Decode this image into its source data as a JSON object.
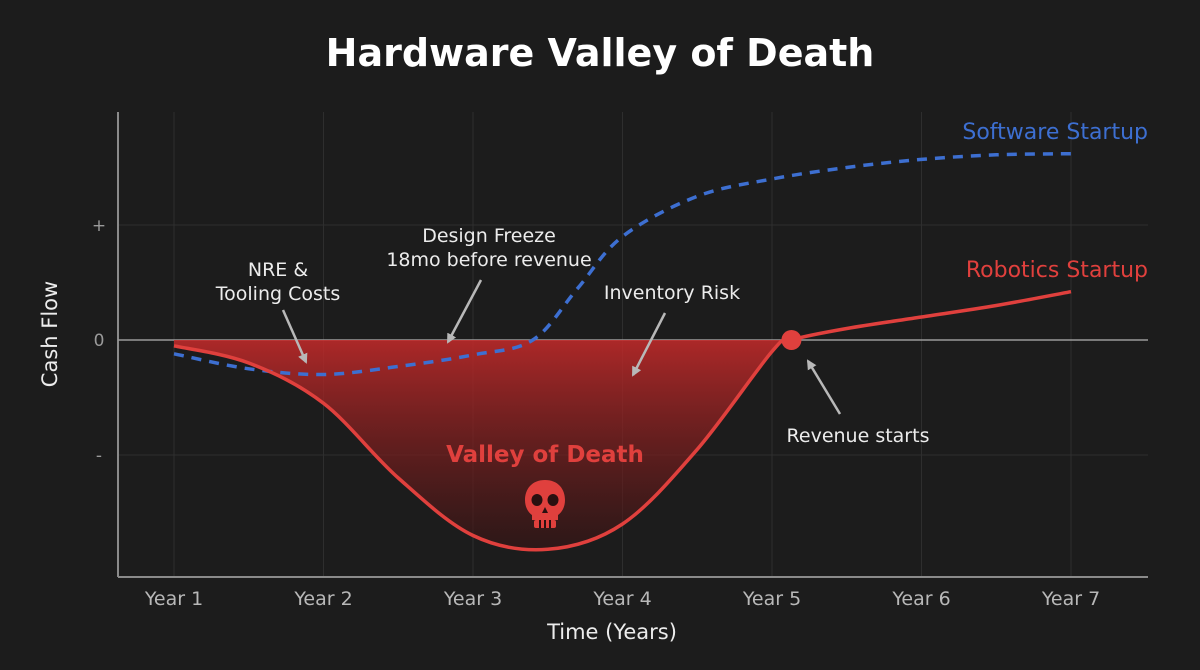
{
  "chart_data": {
    "type": "line",
    "title": "Hardware Valley of Death",
    "xlabel": "Time (Years)",
    "ylabel": "Cash Flow",
    "categories": [
      "Year 1",
      "Year 2",
      "Year 3",
      "Year 4",
      "Year 5",
      "Year 6",
      "Year 7"
    ],
    "xlim": [
      1,
      7
    ],
    "ylim": [
      -2,
      2
    ],
    "ytick_labels": [
      {
        "y": 1,
        "label": "+"
      },
      {
        "y": 0,
        "label": "0"
      },
      {
        "y": -1,
        "label": "-"
      }
    ],
    "grid": true,
    "series": [
      {
        "name": "Software Startup",
        "style": "dashed",
        "color": "#3d6fd1",
        "points": [
          [
            1,
            -0.12
          ],
          [
            1.5,
            -0.25
          ],
          [
            2,
            -0.3
          ],
          [
            2.5,
            -0.23
          ],
          [
            3,
            -0.13
          ],
          [
            3.4,
            0.0
          ],
          [
            3.7,
            0.45
          ],
          [
            4,
            0.9
          ],
          [
            4.5,
            1.25
          ],
          [
            5,
            1.4
          ],
          [
            5.5,
            1.5
          ],
          [
            6,
            1.57
          ],
          [
            6.5,
            1.61
          ],
          [
            7,
            1.62
          ]
        ]
      },
      {
        "name": "Robotics Startup",
        "style": "solid",
        "color": "#e0403d",
        "points": [
          [
            1,
            -0.05
          ],
          [
            1.5,
            -0.2
          ],
          [
            2,
            -0.55
          ],
          [
            2.5,
            -1.2
          ],
          [
            3,
            -1.7
          ],
          [
            3.5,
            -1.82
          ],
          [
            4,
            -1.6
          ],
          [
            4.5,
            -0.95
          ],
          [
            5,
            -0.1
          ],
          [
            5.13,
            0.0
          ],
          [
            5.5,
            0.1
          ],
          [
            6,
            0.2
          ],
          [
            6.5,
            0.3
          ],
          [
            7,
            0.42
          ]
        ]
      }
    ],
    "shaded_region": {
      "label": "Valley of Death",
      "color": "#e0403d",
      "x_range": [
        1,
        5.13
      ]
    },
    "markers": [
      {
        "x": 5.13,
        "y": 0,
        "color": "#e0403d"
      }
    ],
    "annotations": [
      {
        "lines": [
          "NRE &",
          "Tooling Costs"
        ]
      },
      {
        "lines": [
          "Design Freeze",
          "18mo before revenue"
        ]
      },
      {
        "lines": [
          "Inventory Risk"
        ]
      },
      {
        "lines": [
          "Revenue starts"
        ]
      }
    ],
    "colors": {
      "background": "#1c1c1c",
      "software": "#3d6fd1",
      "robotics": "#e0403d",
      "text": "#ececec"
    }
  }
}
